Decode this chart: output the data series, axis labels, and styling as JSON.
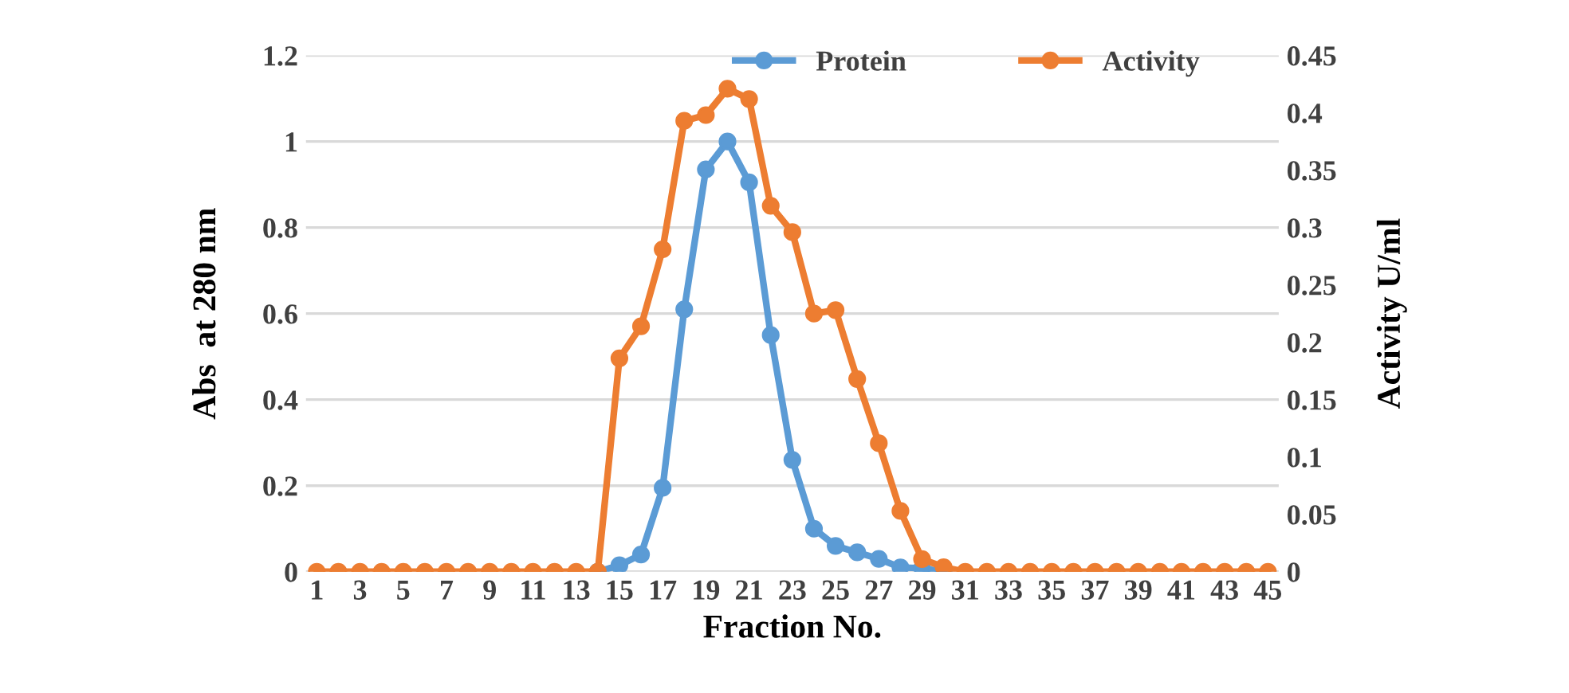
{
  "chart_data": {
    "type": "line",
    "xlabel": "Fraction No.",
    "ylabel": "Abs  at 280 nm",
    "y2label": "Activity U/ml",
    "categories": [
      "1",
      null,
      "3",
      null,
      "5",
      null,
      "7",
      null,
      "9",
      null,
      "11",
      null,
      "13",
      null,
      "15",
      null,
      "17",
      null,
      "19",
      null,
      "21",
      null,
      "23",
      null,
      "25",
      null,
      "27",
      null,
      "29",
      null,
      "31",
      null,
      "33",
      null,
      "35",
      null,
      "37",
      null,
      "39",
      null,
      "41",
      null,
      "43",
      null,
      "45"
    ],
    "series": [
      {
        "name": "Protein",
        "color": "#5b9bd5",
        "values": [
          null,
          null,
          null,
          null,
          null,
          null,
          null,
          null,
          null,
          null,
          null,
          null,
          null,
          0,
          0.015,
          0.04,
          0.195,
          0.61,
          0.935,
          1.0,
          0.905,
          0.55,
          0.26,
          0.1,
          0.06,
          0.045,
          0.03,
          0.01,
          0.008,
          0,
          null,
          null,
          null,
          null,
          null,
          null,
          null,
          null,
          null,
          null,
          null,
          null,
          null,
          null,
          null
        ]
      },
      {
        "name": "Activity",
        "color": "#ed7d31",
        "axis": "y2",
        "values": [
          0,
          0,
          0,
          0,
          0,
          0,
          0,
          0,
          0,
          0,
          0,
          0,
          0,
          0,
          0.186,
          0.214,
          0.281,
          0.393,
          0.398,
          0.421,
          0.412,
          0.319,
          0.296,
          0.225,
          0.228,
          0.168,
          0.112,
          0.053,
          0.011,
          0.004,
          0,
          0,
          0,
          0,
          0,
          0,
          0,
          0,
          0,
          0,
          0,
          0,
          0,
          0,
          0
        ]
      }
    ],
    "ylim": [
      0,
      1.2
    ],
    "yticks": [
      0,
      0.2,
      0.4,
      0.6,
      0.8,
      1,
      1.2
    ],
    "y2lim": [
      0,
      0.45
    ],
    "y2ticks": [
      0,
      0.05,
      0.1,
      0.15,
      0.2,
      0.25,
      0.3,
      0.35,
      0.4,
      0.45
    ],
    "grid": "y",
    "legend": "top",
    "marker": "circle",
    "line_style": "solid"
  }
}
